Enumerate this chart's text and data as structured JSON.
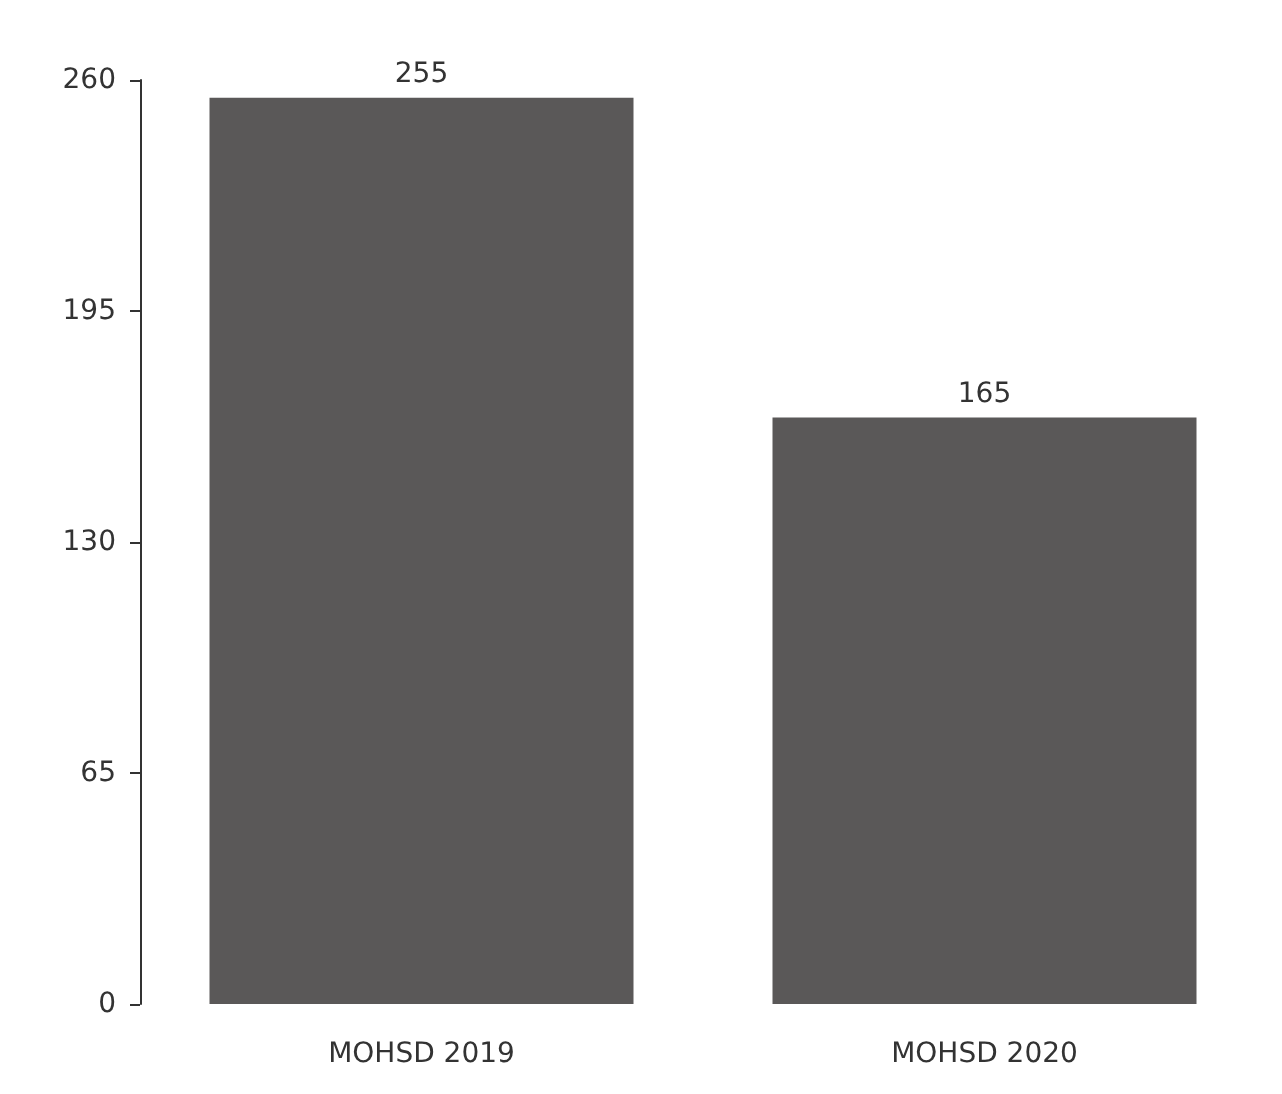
{
  "chart_data": {
    "type": "bar",
    "categories": [
      "MOHSD 2019",
      "MOHSD 2020"
    ],
    "values": [
      255,
      165
    ],
    "color": "#5a5858",
    "ylim": [
      0,
      260
    ],
    "yticks": [
      0,
      65,
      130,
      195,
      260
    ],
    "grid": false,
    "data_labels": true
  }
}
